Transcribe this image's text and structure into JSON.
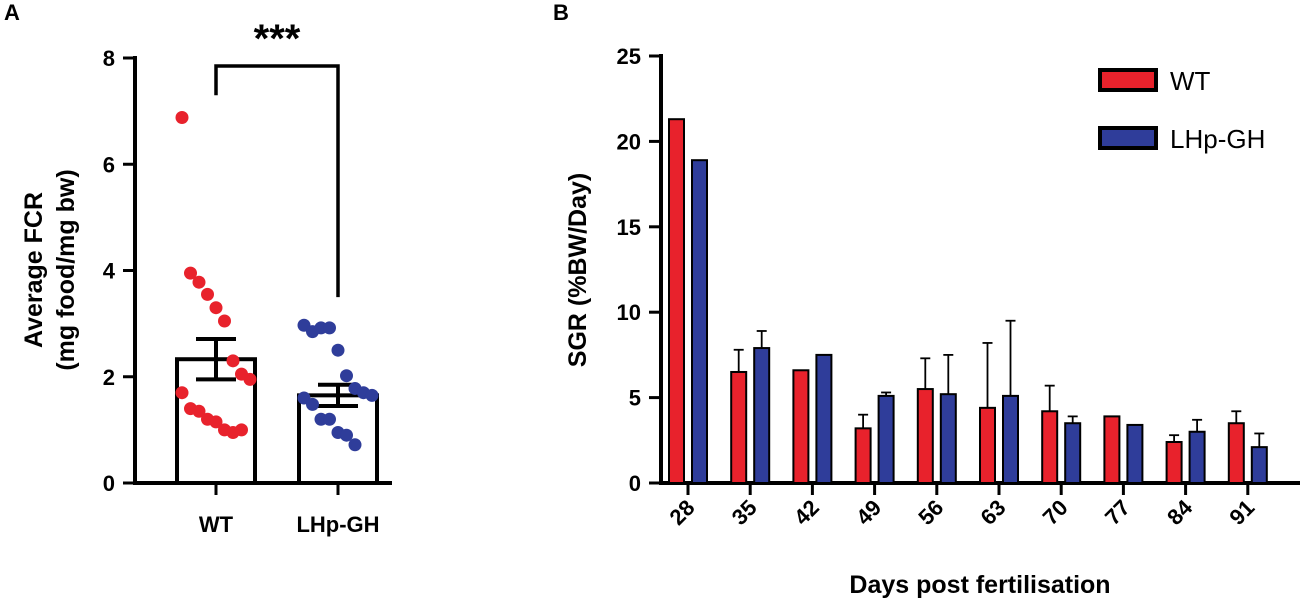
{
  "chart_data": [
    {
      "panel": "A",
      "type": "bar",
      "categories": [
        "WT",
        "LHp-GH"
      ],
      "means": [
        2.33,
        1.65
      ],
      "sem": [
        0.38,
        0.2
      ],
      "points": [
        [
          6.88,
          3.95,
          3.78,
          3.55,
          3.3,
          3.05,
          2.3,
          2.05,
          1.95,
          1.7,
          1.4,
          1.35,
          1.2,
          1.15,
          1.0,
          0.95,
          1.0
        ],
        [
          2.97,
          2.85,
          2.92,
          2.92,
          2.5,
          2.02,
          1.78,
          1.7,
          1.65,
          1.6,
          1.48,
          1.2,
          1.2,
          0.95,
          0.9,
          0.72
        ]
      ],
      "point_colors": [
        "#e8222c",
        "#2f3d9a"
      ],
      "ylabel": [
        "Average FCR",
        "(mg food/mg bw)"
      ],
      "ylim": [
        0,
        8
      ],
      "yticks": [
        "0",
        "2",
        "4",
        "6",
        "8"
      ],
      "significance": "***"
    },
    {
      "panel": "B",
      "type": "bar",
      "categories": [
        "28",
        "35",
        "42",
        "49",
        "56",
        "63",
        "70",
        "77",
        "84",
        "91"
      ],
      "series": [
        {
          "name": "WT",
          "color": "#e8222c",
          "values": [
            21.3,
            6.5,
            6.6,
            3.2,
            5.5,
            4.4,
            4.2,
            3.9,
            2.4,
            3.5
          ],
          "error": [
            0,
            1.3,
            0,
            0.8,
            1.8,
            3.8,
            1.5,
            0,
            0.4,
            0.7
          ]
        },
        {
          "name": "LHp-GH",
          "color": "#2f3d9a",
          "values": [
            18.9,
            7.9,
            7.5,
            5.1,
            5.2,
            5.1,
            3.5,
            3.4,
            3.0,
            2.1
          ],
          "error": [
            0,
            1.0,
            0,
            0.2,
            2.3,
            4.4,
            0.4,
            0,
            0.7,
            0.8
          ]
        }
      ],
      "xlabel": "Days post fertilisation",
      "ylabel": "SGR (%BW/Day)",
      "ylim": [
        0,
        25
      ],
      "yticks": [
        "0",
        "5",
        "10",
        "15",
        "20",
        "25"
      ]
    }
  ]
}
